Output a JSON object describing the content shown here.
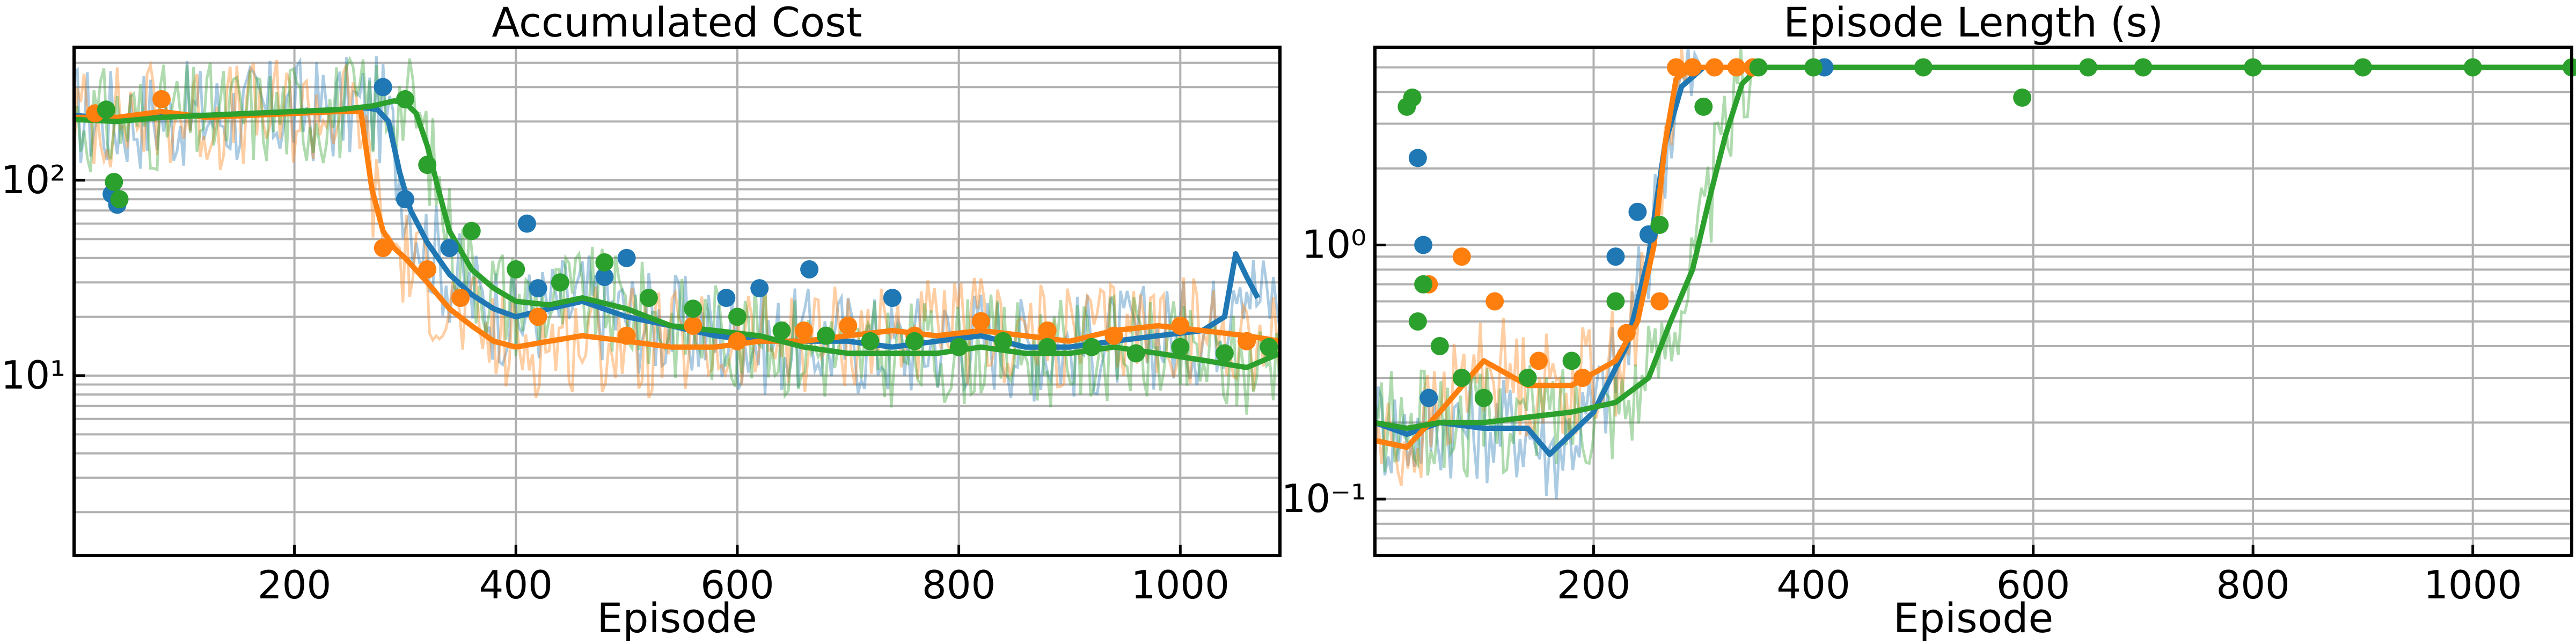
{
  "chart_data": [
    {
      "type": "line",
      "title": "Accumulated Cost",
      "xlabel": "Episode",
      "ylabel": "",
      "xlim": [
        1,
        1090
      ],
      "ylim": [
        1.2,
        480
      ],
      "yscale": "log",
      "grid": true,
      "legend": "none",
      "x_ticks": [
        200,
        400,
        600,
        800,
        1000
      ],
      "x_tick_labels": [
        "200",
        "400",
        "600",
        "800",
        "1000"
      ],
      "y_ticks": [
        10,
        100
      ],
      "y_tick_labels": [
        "10¹",
        "10²"
      ],
      "series": [
        {
          "color": "#1f77b4",
          "x": [
            1,
            40,
            80,
            120,
            160,
            200,
            240,
            265,
            275,
            285,
            295,
            305,
            320,
            340,
            360,
            380,
            400,
            430,
            460,
            500,
            540,
            580,
            620,
            660,
            700,
            740,
            780,
            820,
            860,
            900,
            940,
            980,
            1020,
            1040,
            1050,
            1060,
            1070
          ],
          "y": [
            215,
            205,
            215,
            215,
            220,
            225,
            230,
            235,
            230,
            200,
            110,
            70,
            48,
            33,
            26,
            22,
            20,
            22,
            24,
            20,
            18,
            16,
            15,
            15,
            15,
            14,
            15,
            16,
            14,
            14,
            15,
            16,
            17,
            20,
            42,
            32,
            25
          ]
        },
        {
          "color": "#ff7f0e",
          "x": [
            1,
            40,
            80,
            120,
            160,
            200,
            240,
            260,
            270,
            280,
            290,
            300,
            320,
            340,
            360,
            380,
            400,
            430,
            460,
            500,
            540,
            580,
            620,
            660,
            700,
            740,
            780,
            820,
            860,
            900,
            940,
            980,
            1020,
            1060,
            1090
          ],
          "y": [
            210,
            210,
            225,
            210,
            215,
            220,
            225,
            225,
            90,
            55,
            45,
            40,
            30,
            22,
            18,
            15,
            14,
            15,
            16,
            15,
            14,
            14,
            15,
            15,
            16,
            17,
            16,
            17,
            16,
            15,
            17,
            18,
            17,
            16,
            15
          ]
        },
        {
          "color": "#2ca02c",
          "x": [
            1,
            40,
            80,
            120,
            160,
            200,
            240,
            270,
            290,
            300,
            310,
            320,
            330,
            340,
            360,
            380,
            400,
            430,
            460,
            500,
            540,
            580,
            620,
            660,
            700,
            740,
            780,
            820,
            860,
            900,
            940,
            980,
            1020,
            1060,
            1090
          ],
          "y": [
            205,
            200,
            210,
            215,
            220,
            225,
            230,
            240,
            255,
            250,
            220,
            150,
            90,
            55,
            35,
            28,
            24,
            23,
            25,
            22,
            18,
            17,
            16,
            14,
            13,
            13,
            13,
            14,
            13,
            13,
            14,
            13,
            12,
            11,
            13
          ]
        }
      ],
      "scatter": [
        {
          "color": "#1f77b4",
          "x": [
            35,
            40,
            280,
            300,
            340,
            410,
            420,
            480,
            500,
            590,
            620,
            665,
            740
          ],
          "y": [
            85,
            75,
            300,
            80,
            45,
            60,
            28,
            32,
            40,
            25,
            28,
            35,
            25
          ]
        },
        {
          "color": "#ff7f0e",
          "x": [
            20,
            80,
            280,
            320,
            350,
            420,
            500,
            560,
            600,
            660,
            700,
            760,
            820,
            880,
            940,
            1000,
            1060
          ],
          "y": [
            220,
            260,
            45,
            35,
            25,
            20,
            16,
            18,
            15,
            17,
            18,
            16,
            19,
            17,
            16,
            18,
            15
          ]
        },
        {
          "color": "#2ca02c",
          "x": [
            30,
            37,
            42,
            300,
            320,
            360,
            400,
            440,
            480,
            520,
            560,
            600,
            640,
            680,
            720,
            760,
            800,
            840,
            880,
            920,
            960,
            1000,
            1040,
            1080
          ],
          "y": [
            230,
            98,
            80,
            260,
            120,
            55,
            35,
            30,
            38,
            25,
            22,
            20,
            17,
            16,
            15,
            15,
            14,
            15,
            14,
            14,
            13,
            14,
            13,
            14
          ]
        }
      ]
    },
    {
      "type": "line",
      "title": "Episode Length (s)",
      "xlabel": "Episode",
      "ylabel": "",
      "xlim": [
        1,
        1090
      ],
      "ylim": [
        0.06,
        6
      ],
      "yscale": "log",
      "grid": true,
      "legend": "none",
      "x_ticks": [
        200,
        400,
        600,
        800,
        1000
      ],
      "x_tick_labels": [
        "200",
        "400",
        "600",
        "800",
        "1000"
      ],
      "y_ticks": [
        0.1,
        1
      ],
      "y_tick_labels": [
        "10⁻¹",
        "10⁰"
      ],
      "series": [
        {
          "color": "#1f77b4",
          "x": [
            1,
            30,
            60,
            100,
            140,
            160,
            200,
            230,
            250,
            265,
            280,
            300,
            400,
            600,
            800,
            1000,
            1090
          ],
          "y": [
            0.2,
            0.18,
            0.2,
            0.19,
            0.19,
            0.15,
            0.22,
            0.4,
            0.9,
            2.5,
            4.2,
            5.0,
            5.0,
            5.0,
            5.0,
            5.0,
            5.0
          ]
        },
        {
          "color": "#ff7f0e",
          "x": [
            1,
            30,
            60,
            100,
            140,
            180,
            220,
            240,
            255,
            265,
            275,
            290,
            400,
            600,
            800,
            1000,
            1090
          ],
          "y": [
            0.17,
            0.16,
            0.22,
            0.35,
            0.28,
            0.28,
            0.35,
            0.5,
            1.0,
            2.5,
            4.5,
            5.0,
            5.0,
            5.0,
            5.0,
            5.0,
            5.0
          ]
        },
        {
          "color": "#2ca02c",
          "x": [
            1,
            30,
            60,
            100,
            140,
            180,
            220,
            250,
            270,
            290,
            305,
            320,
            335,
            350,
            400,
            600,
            800,
            1000,
            1090
          ],
          "y": [
            0.2,
            0.19,
            0.2,
            0.2,
            0.21,
            0.22,
            0.24,
            0.3,
            0.5,
            0.8,
            1.5,
            2.7,
            4.3,
            5.0,
            5.0,
            5.0,
            5.0,
            5.0,
            5.0
          ]
        }
      ],
      "scatter": [
        {
          "color": "#1f77b4",
          "x": [
            40,
            45,
            50,
            220,
            240,
            250,
            410
          ],
          "y": [
            2.2,
            1.0,
            0.25,
            0.9,
            1.35,
            1.1,
            5.0
          ]
        },
        {
          "color": "#ff7f0e",
          "x": [
            50,
            80,
            110,
            150,
            190,
            230,
            260,
            275,
            290,
            310,
            330,
            345
          ],
          "y": [
            0.7,
            0.9,
            0.6,
            0.35,
            0.3,
            0.45,
            0.6,
            5.0,
            5.0,
            5.0,
            5.0,
            5.0
          ]
        },
        {
          "color": "#2ca02c",
          "x": [
            30,
            35,
            40,
            45,
            60,
            80,
            100,
            140,
            180,
            220,
            260,
            300,
            350,
            400,
            500,
            590,
            650,
            700,
            800,
            900,
            1000,
            1090
          ],
          "y": [
            3.5,
            3.8,
            0.5,
            0.7,
            0.4,
            0.3,
            0.25,
            0.3,
            0.35,
            0.6,
            1.2,
            3.5,
            5.0,
            5.0,
            5.0,
            3.8,
            5.0,
            5.0,
            5.0,
            5.0,
            5.0,
            5.0
          ]
        }
      ]
    }
  ]
}
